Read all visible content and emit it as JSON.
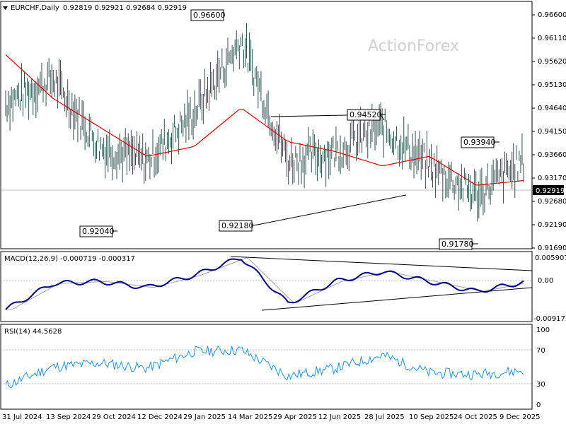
{
  "header": {
    "symbol_label": "EURCHF,Daily",
    "ohlc": "0.92819 0.92921 0.92684 0.92919"
  },
  "watermark": "ActionForex",
  "colors": {
    "price_bars": "#2f4f4f",
    "moving_average": "#e00000",
    "macd_line": "#00008b",
    "signal_line": "#a0a0a0",
    "rsi_line": "#1e90ff",
    "current_price_bg": "#000000"
  },
  "x_axis": {
    "tick_labels": [
      "31 Jul 2024",
      "13 Sep 2024",
      "29 Oct 2024",
      "12 Dec 2024",
      "29 Jan 2025",
      "14 Mar 2025",
      "29 Apr 2025",
      "12 Jun 2025",
      "28 Jul 2025",
      "10 Sep 2025",
      "24 Oct 2025",
      "9 Dec 2025"
    ]
  },
  "price_panel": {
    "y_tick_labels": [
      "0.96600",
      "0.96110",
      "0.95620",
      "0.95130",
      "0.94640",
      "0.94150",
      "0.93660",
      "0.93170",
      "0.92680",
      "0.92190",
      "0.91690"
    ],
    "current_price": "0.92919",
    "callouts": [
      "0.96600",
      "0.94520",
      "0.93940",
      "0.92040",
      "0.92180",
      "0.91780"
    ]
  },
  "macd_panel": {
    "label": "MACD(12,26,9) -0.000719 -0.000317",
    "y_tick_labels": [
      "0.005907",
      "0.00",
      "-0.009175"
    ]
  },
  "rsi_panel": {
    "label": "RSI(14) 44.5628",
    "y_tick_labels": [
      "100",
      "70",
      "30",
      "0"
    ]
  },
  "chart_data": [
    {
      "type": "bar",
      "title": "EURCHF,Daily",
      "subtitle": "0.92819 0.92921 0.92684 0.92919",
      "x": [
        "31 Jul 2024",
        "13 Sep 2024",
        "29 Oct 2024",
        "12 Dec 2024",
        "29 Jan 2025",
        "14 Mar 2025",
        "29 Apr 2025",
        "12 Jun 2025",
        "28 Jul 2025",
        "10 Sep 2025",
        "24 Oct 2025",
        "9 Dec 2025"
      ],
      "series": [
        {
          "values": [
            0.947,
            0.952,
            0.938,
            0.935,
            0.945,
            0.96,
            0.935,
            0.937,
            0.942,
            0.934,
            0.928,
            0.935
          ]
        },
        {
          "name": "MA",
          "values": [
            0.957,
            0.948,
            0.942,
            0.936,
            0.938,
            0.946,
            0.939,
            0.937,
            0.934,
            0.936,
            0.93,
            0.931
          ]
        }
      ],
      "ylim": [
        0.9169,
        0.968
      ],
      "annotations": [
        "0.96600",
        "0.94520",
        "0.93940",
        "0.92040",
        "0.92180",
        "0.91780"
      ],
      "current_value": 0.92919
    },
    {
      "type": "line",
      "title": "MACD(12,26,9) -0.000719 -0.000317",
      "x": [
        "31 Jul 2024",
        "13 Sep 2024",
        "29 Oct 2024",
        "12 Dec 2024",
        "29 Jan 2025",
        "14 Mar 2025",
        "29 Apr 2025",
        "12 Jun 2025",
        "28 Jul 2025",
        "10 Sep 2025",
        "24 Oct 2025",
        "9 Dec 2025"
      ],
      "series": [
        {
          "values": [
            -0.0075,
            -0.001,
            -0.0005,
            -0.002,
            0.001,
            0.0055,
            -0.006,
            -0.0005,
            0.002,
            -0.0005,
            -0.003,
            -0.0007
          ]
        }
      ],
      "ylim": [
        -0.0105,
        0.0068
      ]
    },
    {
      "type": "line",
      "title": "RSI(14) 44.5628",
      "x": [
        "31 Jul 2024",
        "13 Sep 2024",
        "29 Oct 2024",
        "12 Dec 2024",
        "29 Jan 2025",
        "14 Mar 2025",
        "29 Apr 2025",
        "12 Jun 2025",
        "28 Jul 2025",
        "10 Sep 2025",
        "24 Oct 2025",
        "9 Dec 2025"
      ],
      "series": [
        {
          "values": [
            25,
            50,
            55,
            48,
            70,
            72,
            38,
            48,
            65,
            42,
            40,
            45
          ]
        }
      ],
      "ylim": [
        0,
        100
      ]
    }
  ]
}
